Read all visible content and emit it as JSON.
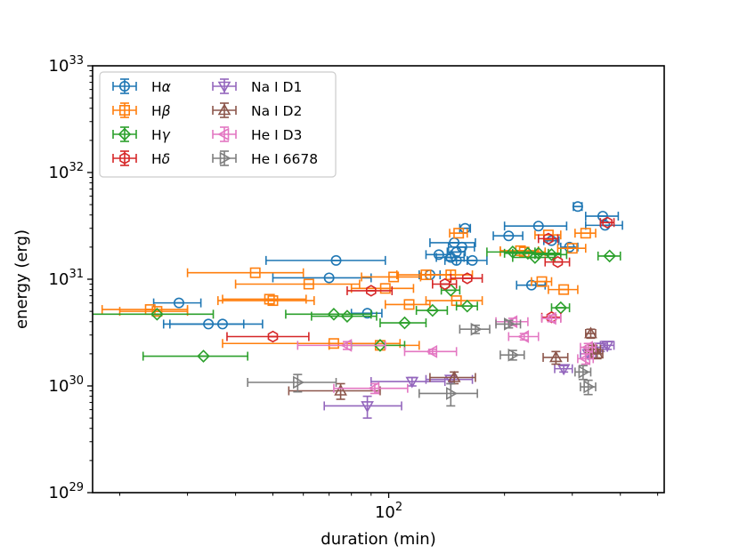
{
  "chart_data": {
    "type": "scatter",
    "xlabel": "duration (min)",
    "ylabel": "energy (erg)",
    "xscale": "log",
    "yscale": "log",
    "xlim": [
      17,
      520
    ],
    "ylim": [
      1e+29,
      1e+33
    ],
    "x_ticks": [
      {
        "value": 100,
        "base": "10",
        "exp": "2"
      }
    ],
    "y_ticks": [
      {
        "value": 1e+29,
        "base": "10",
        "exp": "29"
      },
      {
        "value": 1e+30,
        "base": "10",
        "exp": "30"
      },
      {
        "value": 1e+31,
        "base": "10",
        "exp": "31"
      },
      {
        "value": 1e+32,
        "base": "10",
        "exp": "32"
      },
      {
        "value": 1e+33,
        "base": "10",
        "exp": "33"
      }
    ],
    "legend_position": "top-left",
    "series": [
      {
        "name": "Hα",
        "label_base": "H",
        "label_greek": "α",
        "color": "#1f77b4",
        "marker": "circle",
        "points": [
          [
            28.5,
            6e+30,
            4,
            0.5
          ],
          [
            34,
            3.8e+30,
            8,
            0.4
          ],
          [
            37,
            3.8e+30,
            10,
            0.4
          ],
          [
            73,
            1.5e+31,
            25,
            0.8
          ],
          [
            70,
            1.03e+31,
            20,
            0.6
          ],
          [
            88,
            4.8e+30,
            8,
            0.4
          ],
          [
            148,
            2.2e+31,
            20,
            1.2
          ],
          [
            158,
            3e+31,
            5,
            1.5
          ],
          [
            155,
            2e+31,
            12,
            1.2
          ],
          [
            150,
            1.8e+31,
            8,
            1
          ],
          [
            145,
            1.6e+31,
            12,
            0.8
          ],
          [
            165,
            1.5e+31,
            15,
            0.8
          ],
          [
            135,
            1.7e+31,
            10,
            0.8
          ],
          [
            150,
            1.5e+31,
            10,
            0.8
          ],
          [
            128,
            1.1e+31,
            8,
            0.6
          ],
          [
            205,
            2.55e+31,
            18,
            1.2
          ],
          [
            245,
            3.15e+31,
            45,
            1.5
          ],
          [
            265,
            2.3e+31,
            12,
            1.2
          ],
          [
            310,
            4.8e+31,
            8,
            2.5
          ],
          [
            295,
            2e+31,
            15,
            1
          ],
          [
            360,
            3.9e+31,
            35,
            2
          ],
          [
            365,
            3.2e+31,
            40,
            1.5
          ],
          [
            235,
            8.8e+30,
            20,
            0.5
          ]
        ]
      },
      {
        "name": "Hβ",
        "label_base": "H",
        "label_greek": "β",
        "color": "#ff7f0e",
        "marker": "square",
        "points": [
          [
            45,
            1.15e+31,
            15,
            0.8
          ],
          [
            25,
            5e+30,
            5,
            0.3
          ],
          [
            24,
            5.2e+30,
            6,
            0.3
          ],
          [
            49,
            6.5e+30,
            12,
            0.4
          ],
          [
            50,
            6.3e+30,
            14,
            0.4
          ],
          [
            62,
            9e+30,
            22,
            0.5
          ],
          [
            72,
            2.5e+30,
            35,
            0.5
          ],
          [
            95,
            2.4e+30,
            25,
            0.3
          ],
          [
            98,
            8.2e+30,
            18,
            0.4
          ],
          [
            103,
            1.05e+31,
            18,
            0.6
          ],
          [
            125,
            1.1e+31,
            20,
            0.6
          ],
          [
            113,
            5.8e+30,
            15,
            0.4
          ],
          [
            145,
            1.1e+31,
            20,
            0.6
          ],
          [
            152,
            2.7e+31,
            8,
            1.5
          ],
          [
            150,
            6.3e+30,
            25,
            0.4
          ],
          [
            250,
            9.5e+30,
            15,
            0.5
          ],
          [
            225,
            1.8e+31,
            30,
            0.8
          ],
          [
            260,
            2.6e+31,
            20,
            1
          ],
          [
            285,
            8e+30,
            25,
            0.4
          ],
          [
            300,
            1.95e+31,
            25,
            1
          ],
          [
            325,
            2.7e+31,
            20,
            1.2
          ],
          [
            220,
            1.85e+31,
            25,
            0.8
          ]
        ]
      },
      {
        "name": "Hγ",
        "label_base": "H",
        "label_greek": "γ",
        "color": "#2ca02c",
        "marker": "diamond",
        "points": [
          [
            25,
            4.7e+30,
            10,
            0.4
          ],
          [
            33,
            1.9e+30,
            10,
            0.2
          ],
          [
            72,
            4.7e+30,
            18,
            0.3
          ],
          [
            78,
            4.5e+30,
            15,
            0.3
          ],
          [
            95,
            2.4e+30,
            15,
            0.3
          ],
          [
            110,
            3.9e+30,
            15,
            0.3
          ],
          [
            130,
            5.1e+30,
            12,
            0.3
          ],
          [
            145,
            7.9e+30,
            8,
            0.4
          ],
          [
            160,
            5.6e+30,
            10,
            0.3
          ],
          [
            210,
            1.8e+31,
            30,
            0.8
          ],
          [
            230,
            1.75e+31,
            30,
            0.8
          ],
          [
            245,
            1.75e+31,
            35,
            0.8
          ],
          [
            240,
            1.6e+31,
            30,
            0.8
          ],
          [
            265,
            1.7e+31,
            25,
            0.8
          ],
          [
            280,
            5.4e+30,
            15,
            0.3
          ],
          [
            375,
            1.65e+31,
            25,
            0.8
          ]
        ]
      },
      {
        "name": "Hδ",
        "label_base": "H",
        "label_greek": "δ",
        "color": "#d62728",
        "marker": "hexagon",
        "points": [
          [
            50,
            2.9e+30,
            12,
            0.5
          ],
          [
            90,
            7.8e+30,
            12,
            0.8
          ],
          [
            140,
            9e+30,
            10,
            0.5
          ],
          [
            160,
            1.02e+31,
            15,
            0.5
          ],
          [
            265,
            4.4e+30,
            15,
            0.4
          ],
          [
            275,
            1.45e+31,
            20,
            0.7
          ],
          [
            260,
            2.4e+31,
            15,
            1
          ],
          [
            370,
            3.4e+31,
            15,
            1.5
          ]
        ]
      },
      {
        "name": "Na I D1",
        "color": "#9467bd",
        "marker": "triangle-down",
        "points": [
          [
            88,
            6.5e+29,
            20,
            1.5e+29
          ],
          [
            115,
            1.1e+30,
            25,
            1e+29
          ],
          [
            145,
            1.15e+30,
            20,
            1e+29
          ],
          [
            285,
            1.45e+30,
            15,
            1e+29
          ],
          [
            330,
            2e+30,
            15,
            2e+29
          ],
          [
            355,
            2.3e+30,
            15,
            2e+29
          ],
          [
            370,
            2.4e+30,
            15,
            2e+29
          ]
        ]
      },
      {
        "name": "Na I D2",
        "color": "#8c564b",
        "marker": "triangle-up",
        "points": [
          [
            75,
            9e+29,
            20,
            1.5e+29
          ],
          [
            148,
            1.2e+30,
            20,
            1.5e+29
          ],
          [
            272,
            1.85e+30,
            20,
            2.5e+29
          ],
          [
            340,
            2.2e+30,
            15,
            2e+29
          ],
          [
            335,
            3.1e+30,
            10,
            3e+29
          ],
          [
            348,
            2e+30,
            12,
            2e+29
          ]
        ]
      },
      {
        "name": "He I D3",
        "color": "#e377c2",
        "marker": "triangle-left",
        "points": [
          [
            78,
            2.4e+30,
            20,
            2e+29
          ],
          [
            92,
            9.5e+29,
            20,
            1e+29
          ],
          [
            130,
            2.1e+30,
            20,
            1e+29
          ],
          [
            210,
            4e+30,
            20,
            3e+29
          ],
          [
            225,
            2.9e+30,
            20,
            2e+29
          ],
          [
            265,
            4.3e+30,
            15,
            3e+29
          ],
          [
            330,
            2.3e+30,
            15,
            2e+29
          ],
          [
            325,
            1.8e+30,
            15,
            2e+29
          ]
        ]
      },
      {
        "name": "He I 6678",
        "color": "#7f7f7f",
        "marker": "triangle-right",
        "points": [
          [
            58,
            1.08e+30,
            15,
            2e+29
          ],
          [
            145,
            8.5e+29,
            25,
            2e+29
          ],
          [
            168,
            3.4e+30,
            15,
            3e+29
          ],
          [
            205,
            3.8e+30,
            15,
            3e+29
          ],
          [
            210,
            1.95e+30,
            15,
            2e+29
          ],
          [
            320,
            1.35e+30,
            15,
            2e+29
          ],
          [
            330,
            9.8e+29,
            15,
            1.5e+29
          ]
        ]
      }
    ]
  }
}
